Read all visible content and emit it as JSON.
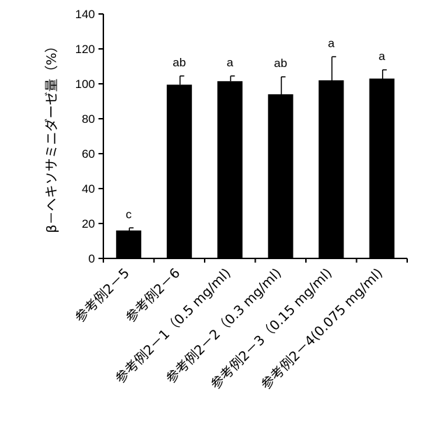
{
  "chart_data": {
    "type": "bar",
    "title": "",
    "xlabel": "",
    "ylabel": "β－ヘキソサミニダーゼ量（%）",
    "ylim": [
      0,
      140
    ],
    "yticks": [
      0,
      20,
      40,
      60,
      80,
      100,
      120,
      140
    ],
    "grid": false,
    "legend": "none",
    "bar_color": "#000000",
    "categories": [
      "参考例2－5",
      "参考例2－6",
      "参考例2－1（0.5 mg/ml)",
      "参考例2－2（0.3 mg/ml)",
      "参考例2－3（0.15 mg/ml)",
      "参考例2－4(0.075 mg/ml)"
    ],
    "values": [
      16,
      99.5,
      101.5,
      94,
      102,
      103
    ],
    "errors": [
      1.5,
      5,
      3,
      10,
      13.5,
      5
    ],
    "significance": [
      "c",
      "ab",
      "a",
      "ab",
      "a",
      "a"
    ]
  }
}
